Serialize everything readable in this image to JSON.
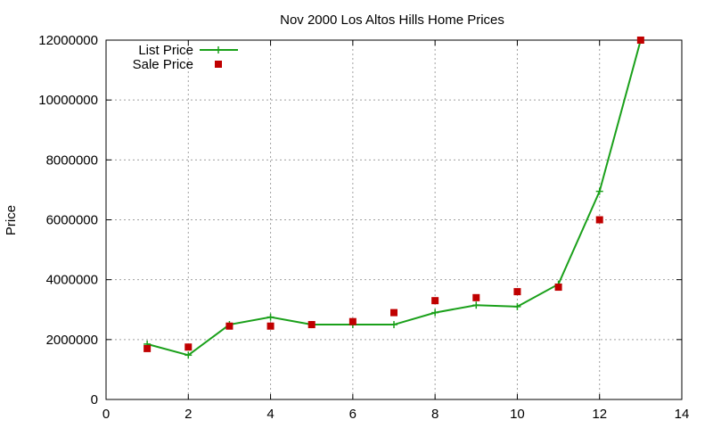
{
  "chart_data": {
    "type": "line",
    "title": "Nov 2000 Los Altos Hills Home Prices",
    "xlabel": "",
    "ylabel": "Price",
    "xlim": [
      0,
      14
    ],
    "ylim": [
      0,
      12000000
    ],
    "x_ticks": [
      "0",
      "2",
      "4",
      "6",
      "8",
      "10",
      "12",
      "14"
    ],
    "y_ticks": [
      "0",
      "2000000",
      "4000000",
      "6000000",
      "8000000",
      "10000000",
      "12000000"
    ],
    "grid": true,
    "legend_position": "top-left",
    "series": [
      {
        "name": "List Price",
        "style": "line+cross",
        "color": "#1aa01a",
        "x": [
          1,
          2,
          3,
          4,
          5,
          6,
          7,
          8,
          9,
          10,
          11,
          12,
          13
        ],
        "y": [
          1850000,
          1480000,
          2500000,
          2750000,
          2500000,
          2500000,
          2500000,
          2900000,
          3150000,
          3100000,
          3850000,
          6950000,
          12000000
        ]
      },
      {
        "name": "Sale Price",
        "style": "square-markers",
        "color": "#c00000",
        "x": [
          1,
          2,
          3,
          4,
          5,
          6,
          7,
          8,
          9,
          10,
          11,
          12,
          13
        ],
        "y": [
          1700000,
          1750000,
          2450000,
          2450000,
          2500000,
          2600000,
          2900000,
          3300000,
          3400000,
          3600000,
          3750000,
          6000000,
          12000000
        ]
      }
    ]
  }
}
